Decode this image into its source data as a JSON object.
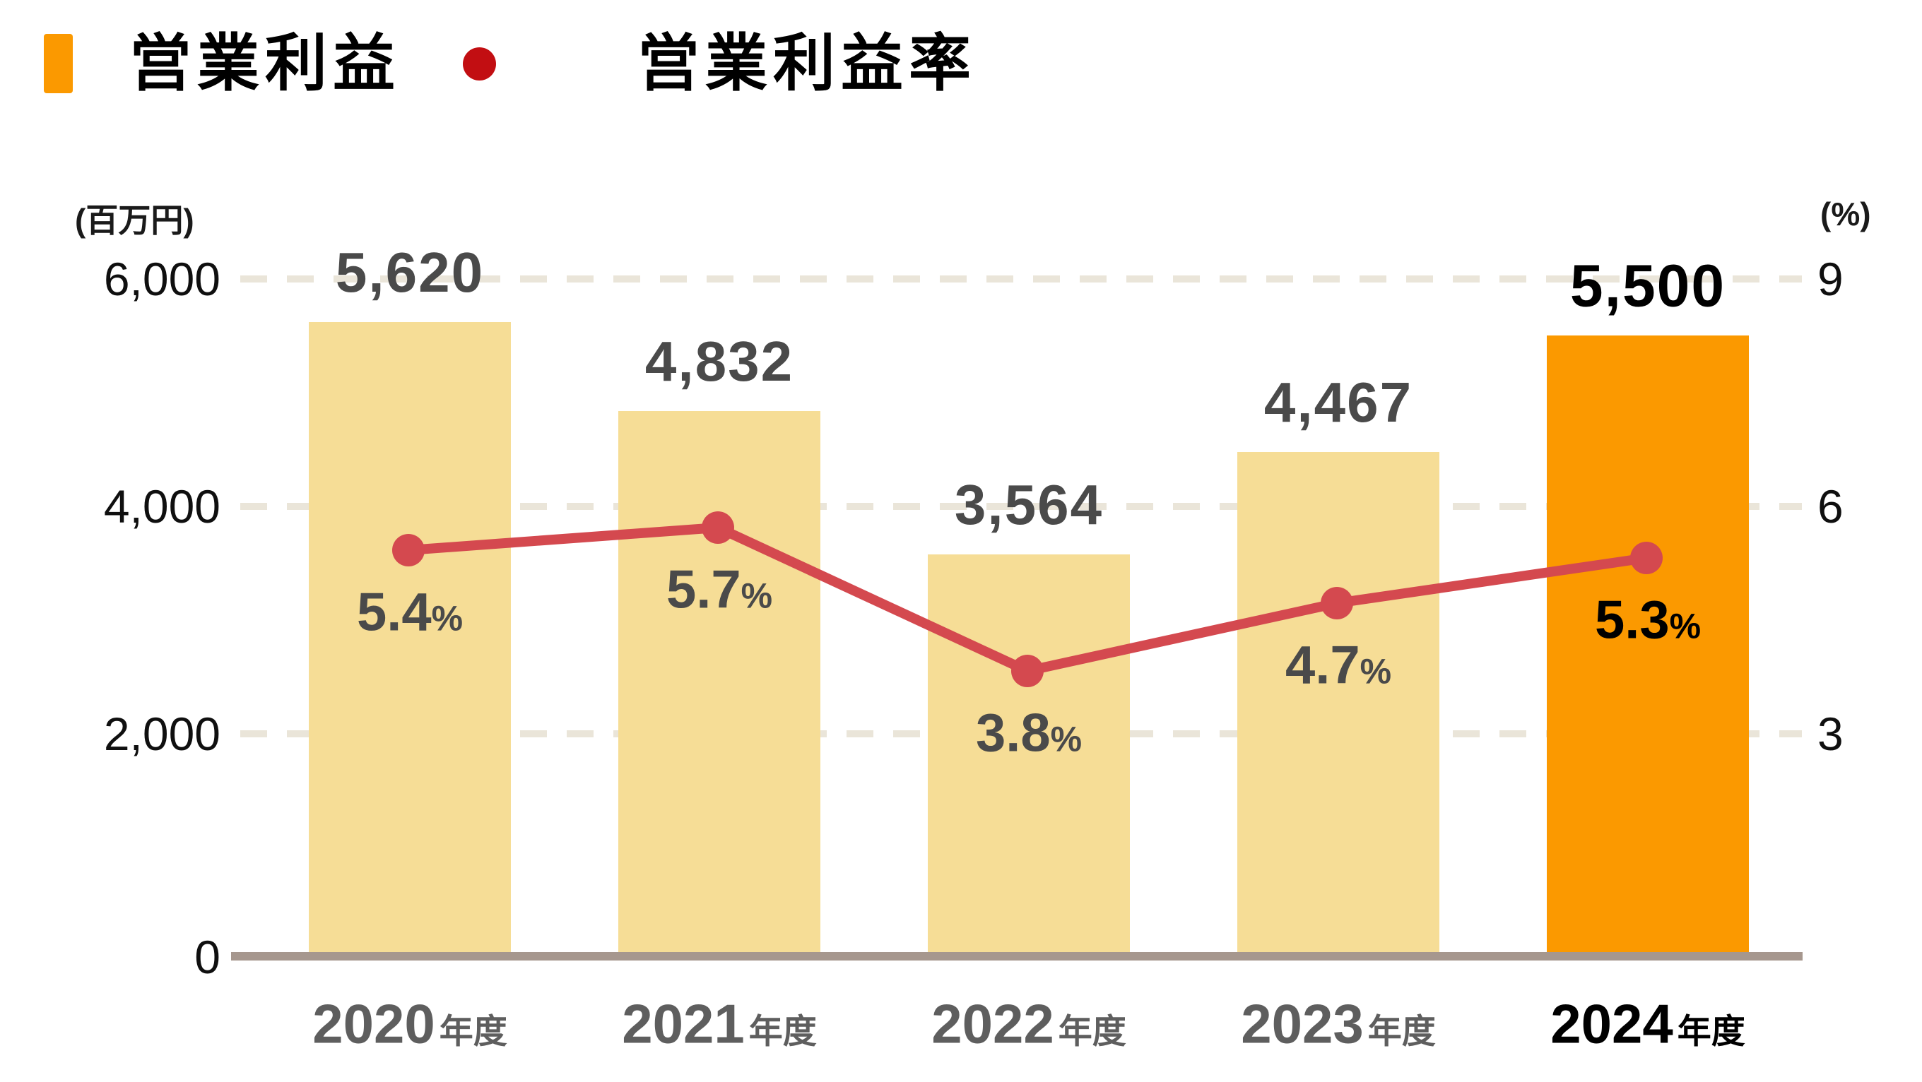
{
  "legend": {
    "bar_label": "営業利益",
    "line_label": "営業利益率"
  },
  "axes": {
    "left_unit": "(百万円)",
    "right_unit": "(%)",
    "left_ticks": [
      "6,000",
      "4,000",
      "2,000",
      "0"
    ],
    "right_ticks": [
      "9",
      "6",
      "3"
    ]
  },
  "chart_data": {
    "type": "bar",
    "categories": [
      "2020年度",
      "2021年度",
      "2022年度",
      "2023年度",
      "2024年度"
    ],
    "category_years": [
      "2020",
      "2021",
      "2022",
      "2023",
      "2024"
    ],
    "category_suffix": "年度",
    "series": [
      {
        "name": "営業利益",
        "type": "bar",
        "unit": "百万円",
        "values": [
          5620,
          4832,
          3564,
          4467,
          5500
        ],
        "labels": [
          "5,620",
          "4,832",
          "3,564",
          "4,467",
          "5,500"
        ]
      },
      {
        "name": "営業利益率",
        "type": "line",
        "unit": "%",
        "values": [
          5.4,
          5.7,
          3.8,
          4.7,
          5.3
        ],
        "labels": [
          "5.4",
          "5.7",
          "3.8",
          "4.7",
          "5.3"
        ]
      }
    ],
    "pct_suffix": "%",
    "ylim_left": [
      0,
      6000
    ],
    "ylim_right": [
      0,
      9
    ],
    "grid": true,
    "legend_position": "top-left",
    "highlight_index": 4
  },
  "colors": {
    "bar": "#F6DD96",
    "bar_highlight": "#FB9900",
    "line": "#D4494F",
    "legend_dot": "#C20E12",
    "legend_bar": "#FB9900",
    "gridline": "#EAE5D9",
    "baseline": "#A6978E",
    "value_label": "#4A4A4A",
    "year_label": "#5E5E5E",
    "tick_label": "#0F0F0F",
    "emphasis": "#000000"
  }
}
